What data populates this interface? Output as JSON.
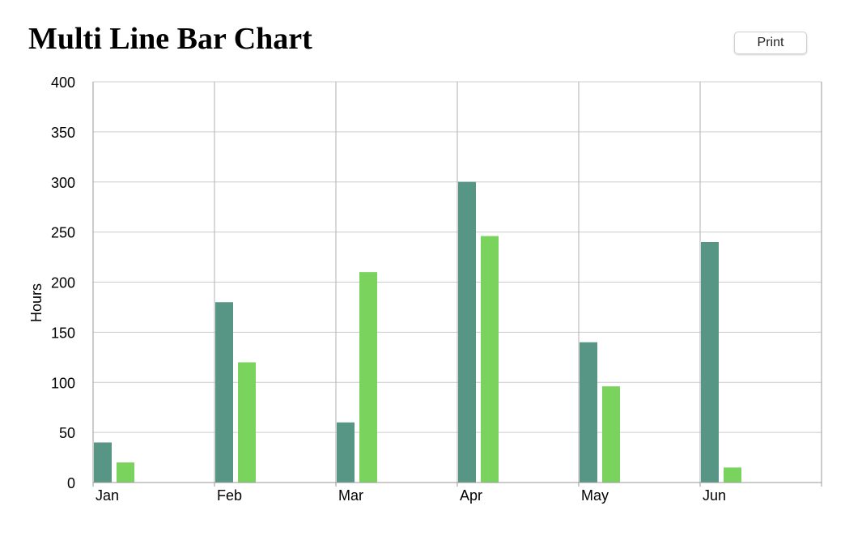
{
  "page": {
    "title": "Multi Line Bar Chart",
    "print_label": "Print"
  },
  "colors": {
    "series_1": "#579685",
    "series_2": "#79d35c",
    "grid": "#cccccc",
    "axis": "#999999"
  },
  "chart_data": {
    "type": "bar",
    "title": "Multi Line Bar Chart",
    "xlabel": "",
    "ylabel": "Hours",
    "ylim": [
      0,
      400
    ],
    "yticks": [
      0,
      50,
      100,
      150,
      200,
      250,
      300,
      350,
      400
    ],
    "categories": [
      "Jan",
      "Feb",
      "Mar",
      "Apr",
      "May",
      "Jun"
    ],
    "series": [
      {
        "values": [
          40,
          180,
          60,
          300,
          140,
          240
        ]
      },
      {
        "values": [
          20,
          120,
          210,
          246,
          96,
          15
        ]
      }
    ],
    "grid": true,
    "legend": "none"
  }
}
